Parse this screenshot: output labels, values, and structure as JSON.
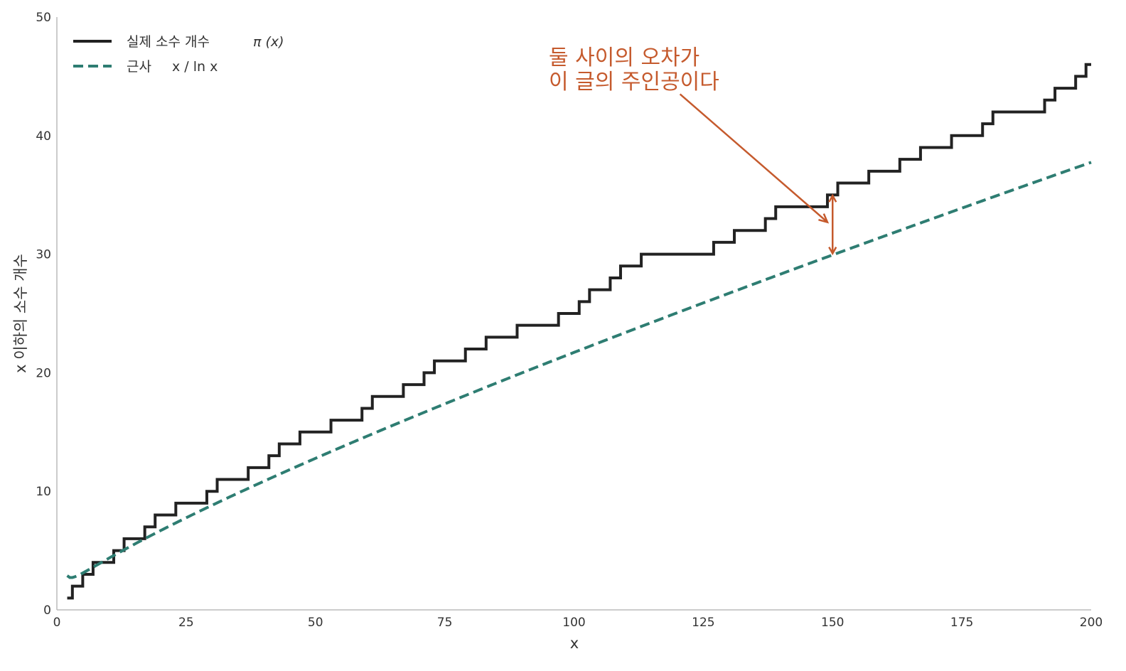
{
  "chart_data": {
    "type": "line",
    "title": "",
    "xlabel": "x",
    "ylabel": "x 이하의 소수 개수",
    "xlim": [
      0,
      200
    ],
    "ylim": [
      0,
      50
    ],
    "xticks": [
      0,
      25,
      50,
      75,
      100,
      125,
      150,
      175,
      200
    ],
    "yticks": [
      0,
      10,
      20,
      30,
      40,
      50
    ],
    "grid": false,
    "legend_position": "top-left",
    "legend": [
      {
        "label": "실제 소수 개수",
        "math": "π (x)"
      },
      {
        "label": "근사",
        "math": "x ∕ ln x"
      }
    ],
    "series": [
      {
        "name": "실제 소수 개수 π (x)",
        "kind": "step",
        "color": "#222222",
        "x_start": 2,
        "x_end": 200,
        "steps": [
          [
            2,
            1
          ],
          [
            3,
            2
          ],
          [
            5,
            3
          ],
          [
            7,
            4
          ],
          [
            11,
            5
          ],
          [
            13,
            6
          ],
          [
            17,
            7
          ],
          [
            19,
            8
          ],
          [
            23,
            9
          ],
          [
            29,
            10
          ],
          [
            31,
            11
          ],
          [
            37,
            12
          ],
          [
            41,
            13
          ],
          [
            43,
            14
          ],
          [
            47,
            15
          ],
          [
            53,
            16
          ],
          [
            59,
            17
          ],
          [
            61,
            18
          ],
          [
            67,
            19
          ],
          [
            71,
            20
          ],
          [
            73,
            21
          ],
          [
            79,
            22
          ],
          [
            83,
            23
          ],
          [
            89,
            24
          ],
          [
            97,
            25
          ],
          [
            101,
            26
          ],
          [
            103,
            27
          ],
          [
            107,
            28
          ],
          [
            109,
            29
          ],
          [
            113,
            30
          ],
          [
            127,
            31
          ],
          [
            131,
            32
          ],
          [
            137,
            33
          ],
          [
            139,
            34
          ],
          [
            149,
            35
          ],
          [
            151,
            36
          ],
          [
            157,
            37
          ],
          [
            163,
            38
          ],
          [
            167,
            39
          ],
          [
            173,
            40
          ],
          [
            179,
            41
          ],
          [
            181,
            42
          ],
          [
            191,
            43
          ],
          [
            193,
            44
          ],
          [
            197,
            45
          ],
          [
            199,
            46
          ]
        ]
      },
      {
        "name": "근사 x ∕ ln x",
        "kind": "function",
        "function": "x / ln x",
        "color": "#2e7d72",
        "dashed": true,
        "x_start": 2,
        "x_end": 200
      }
    ],
    "annotations": [
      {
        "text_lines": [
          "둘 사이의 오차가",
          "이 글의 주인공이다"
        ],
        "color": "#c55a2d",
        "arrow_from": [
          120.5,
          43.5
        ],
        "arrow_to": [
          149,
          32.7
        ],
        "gap_marker_x": 150,
        "gap_marker_y": [
          30,
          35
        ]
      }
    ]
  }
}
